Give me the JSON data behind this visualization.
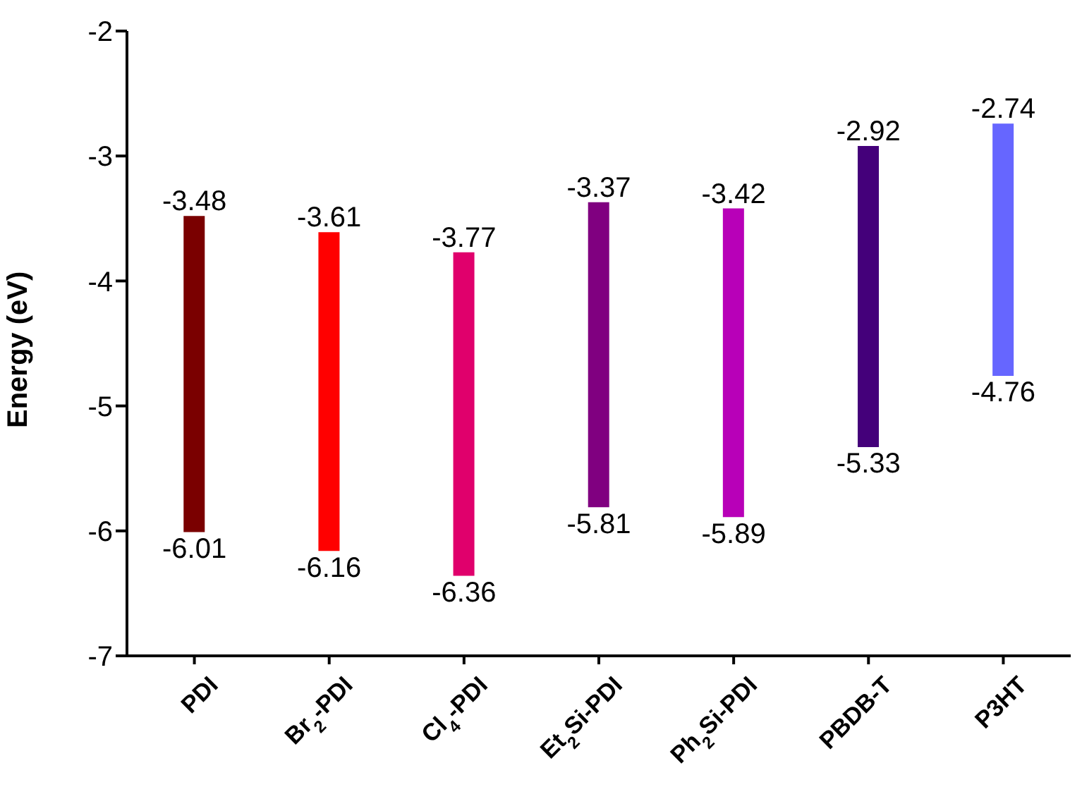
{
  "chart_data": {
    "type": "bar",
    "ylabel": "Energy (eV)",
    "categories": [
      "PDI",
      "Br$_{2}$-PDI",
      "Cl$_{4}$-PDI",
      "Et$_{2}$Si-PDI",
      "Ph$_{2}$Si-PDI",
      "PBDB-T",
      "P3HT"
    ],
    "base": [
      -6.01,
      -6.16,
      -6.36,
      -5.81,
      -5.89,
      -5.33,
      -4.76
    ],
    "values": [
      2.53,
      2.55,
      2.59,
      2.44,
      2.47,
      2.41,
      2.02
    ],
    "colors": [
      "#7a0000",
      "#ff0000",
      "#e0006c",
      "#800080",
      "#b800b8",
      "#44007a",
      "#6666ff"
    ],
    "ylim": [
      -7,
      -2
    ],
    "yticks": [
      -7,
      -6,
      -5,
      -4,
      -3,
      -2
    ],
    "grid": false,
    "legend": false,
    "annotations": [
      {
        "text": "-3.48",
        "x": "PDI",
        "y": -3.48
      },
      {
        "text": "-6.01",
        "x": "PDI",
        "y": -6.01
      },
      {
        "text": "-3.61",
        "x": "Br$_{2}$-PDI",
        "y": -3.61
      },
      {
        "text": "-6.16",
        "x": "Br$_{2}$-PDI",
        "y": -6.16
      },
      {
        "text": "-3.77",
        "x": "Cl$_{4}$-PDI",
        "y": -3.77
      },
      {
        "text": "-6.36",
        "x": "Cl$_{4}$-PDI",
        "y": -6.36
      },
      {
        "text": "-3.37",
        "x": "Et$_{2}$Si-PDI",
        "y": -3.37
      },
      {
        "text": "-5.81",
        "x": "Et$_{2}$Si-PDI",
        "y": -5.81
      },
      {
        "text": "-3.42",
        "x": "Ph$_{2}$Si-PDI",
        "y": -3.42
      },
      {
        "text": "-5.89",
        "x": "Ph$_{2}$Si-PDI",
        "y": -5.89
      },
      {
        "text": "-2.92",
        "x": "PBDB-T",
        "y": -2.92
      },
      {
        "text": "-5.33",
        "x": "PBDB-T",
        "y": -5.33
      },
      {
        "text": "-2.74",
        "x": "P3HT",
        "y": -2.74
      },
      {
        "text": "-4.76",
        "x": "P3HT",
        "y": -4.76
      }
    ]
  }
}
